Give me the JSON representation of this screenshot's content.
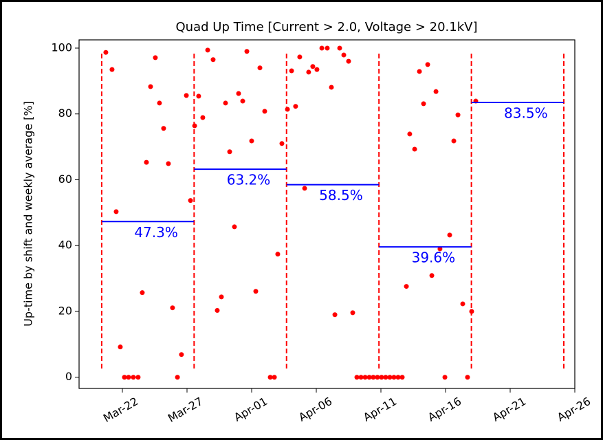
{
  "chart_data": {
    "type": "scatter",
    "title": "Quad Up Time [Current > 2.0, Voltage > 20.1kV]",
    "y_label": "Up-time by shift and weekly average [%]",
    "color": "#ff0000",
    "x": [
      -1.28,
      -0.8,
      -0.48,
      -0.16,
      0.16,
      0.48,
      0.85,
      1.22,
      1.54,
      1.86,
      2.18,
      2.55,
      2.87,
      3.19,
      3.56,
      3.88,
      4.26,
      4.57,
      4.95,
      5.27,
      5.59,
      5.9,
      6.22,
      6.6,
      7.02,
      7.34,
      7.66,
      7.98,
      8.3,
      8.67,
      8.99,
      9.31,
      9.63,
      10.0,
      10.32,
      10.64,
      11.01,
      11.44,
      11.76,
      12.02,
      12.34,
      12.77,
      13.09,
      13.4,
      13.72,
      14.1,
      14.41,
      14.73,
      15.05,
      15.43,
      15.85,
      16.17,
      16.44,
      16.81,
      17.13,
      17.5,
      17.82,
      18.14,
      18.46,
      18.78,
      19.1,
      19.41,
      19.73,
      20.05,
      20.37,
      20.69,
      21.01,
      21.33,
      21.65,
      21.97,
      22.23,
      22.61,
      22.98,
      23.3,
      23.62,
      23.94,
      24.26,
      24.57,
      24.95,
      25.32,
      25.64,
      25.96,
      26.33,
      26.7,
      27.02,
      27.34
    ],
    "values": [
      98.7,
      93.5,
      50.3,
      9.2,
      0,
      0,
      0,
      0,
      25.7,
      65.3,
      88.3,
      97.1,
      83.3,
      75.6,
      64.9,
      21.1,
      0,
      6.9,
      85.6,
      53.7,
      76.4,
      85.4,
      78.9,
      99.4,
      96.5,
      20.3,
      24.4,
      83.3,
      68.5,
      45.7,
      86.2,
      83.9,
      99.0,
      71.8,
      26.1,
      94.0,
      80.8,
      0,
      0,
      37.4,
      71.0,
      81.4,
      93.1,
      82.3,
      97.3,
      57.4,
      92.7,
      94.4,
      93.5,
      100,
      100,
      88.1,
      19.0,
      100,
      97.9,
      96.0,
      19.6,
      0,
      0,
      0,
      0,
      0,
      0,
      0,
      0,
      0,
      0,
      0,
      0,
      27.6,
      73.9,
      69.3,
      92.9,
      83.1,
      95.0,
      30.9,
      86.8,
      39.0,
      0,
      43.2,
      71.8,
      79.7,
      22.3,
      0,
      20.0,
      83.9
    ],
    "boundaries": [
      -1.6,
      5.55,
      12.7,
      19.85,
      27.0,
      34.15
    ],
    "boundary_color": "#ff0000",
    "averages": {
      "color": "#0000ff",
      "values": [
        47.3,
        63.2,
        58.5,
        39.6,
        83.5
      ],
      "value_labels": [
        "47.3%",
        "63.2%",
        "58.5%",
        "39.6%",
        "83.5%"
      ]
    },
    "xlim": [
      -3.35,
      35
    ],
    "ylim": [
      -3.4,
      102.5
    ],
    "xticks": [
      {
        "value": 0,
        "label": "Mar-22"
      },
      {
        "value": 5,
        "label": "Mar-27"
      },
      {
        "value": 10,
        "label": "Apr-01"
      },
      {
        "value": 15,
        "label": "Apr-06"
      },
      {
        "value": 20,
        "label": "Apr-11"
      },
      {
        "value": 25,
        "label": "Apr-16"
      },
      {
        "value": 30,
        "label": "Apr-21"
      },
      {
        "value": 35,
        "label": "Apr-26"
      }
    ],
    "yticks": [
      0,
      20,
      40,
      60,
      80,
      100
    ]
  }
}
